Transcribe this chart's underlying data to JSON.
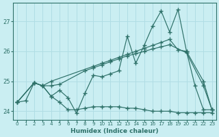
{
  "xlabel": "Humidex (Indice chaleur)",
  "background_color": "#caeef2",
  "grid_color": "#b0dde4",
  "line_color": "#2d7068",
  "xlim": [
    -0.5,
    23.5
  ],
  "ylim": [
    23.72,
    27.62
  ],
  "yticks": [
    24,
    25,
    26,
    27
  ],
  "xticks": [
    0,
    1,
    2,
    3,
    4,
    5,
    6,
    7,
    8,
    9,
    10,
    11,
    12,
    13,
    14,
    15,
    16,
    17,
    18,
    19,
    20,
    21,
    22,
    23
  ],
  "series": [
    {
      "x": [
        0,
        2,
        3,
        4,
        5,
        6,
        7,
        8,
        9,
        10,
        11,
        12,
        13,
        14,
        15,
        16,
        17,
        18,
        19,
        20,
        21,
        22,
        23
      ],
      "y": [
        24.3,
        24.95,
        24.85,
        24.5,
        24.7,
        24.45,
        23.93,
        24.6,
        25.2,
        25.15,
        25.25,
        25.35,
        26.5,
        25.6,
        26.2,
        26.85,
        27.35,
        26.65,
        27.4,
        26.0,
        24.85,
        24.05,
        24.05
      ]
    },
    {
      "x": [
        0,
        2,
        3,
        4,
        9,
        10,
        11,
        12,
        13,
        14,
        15,
        16,
        17,
        18,
        19,
        20,
        22,
        23
      ],
      "y": [
        24.3,
        24.95,
        24.85,
        25.0,
        25.5,
        25.6,
        25.7,
        25.8,
        25.9,
        26.0,
        26.1,
        26.2,
        26.3,
        26.4,
        26.05,
        26.0,
        25.0,
        24.05
      ]
    },
    {
      "x": [
        0,
        1,
        2,
        3,
        4,
        5,
        6,
        7,
        8,
        9,
        10,
        11,
        12,
        13,
        14,
        15,
        16,
        17,
        18,
        19,
        20,
        21,
        22,
        23
      ],
      "y": [
        24.3,
        24.35,
        24.95,
        24.85,
        24.5,
        24.3,
        24.05,
        24.05,
        24.1,
        24.15,
        24.15,
        24.15,
        24.15,
        24.1,
        24.1,
        24.05,
        24.0,
        24.0,
        24.0,
        23.95,
        23.95,
        23.95,
        23.95,
        23.95
      ]
    },
    {
      "x": [
        0,
        2,
        3,
        4,
        5,
        8,
        9,
        10,
        11,
        12,
        13,
        14,
        15,
        16,
        17,
        18,
        20,
        22,
        23
      ],
      "y": [
        24.3,
        24.95,
        24.85,
        24.85,
        24.9,
        25.35,
        25.45,
        25.55,
        25.65,
        25.75,
        25.85,
        25.92,
        26.0,
        26.08,
        26.15,
        26.22,
        25.95,
        24.85,
        24.05
      ]
    }
  ]
}
